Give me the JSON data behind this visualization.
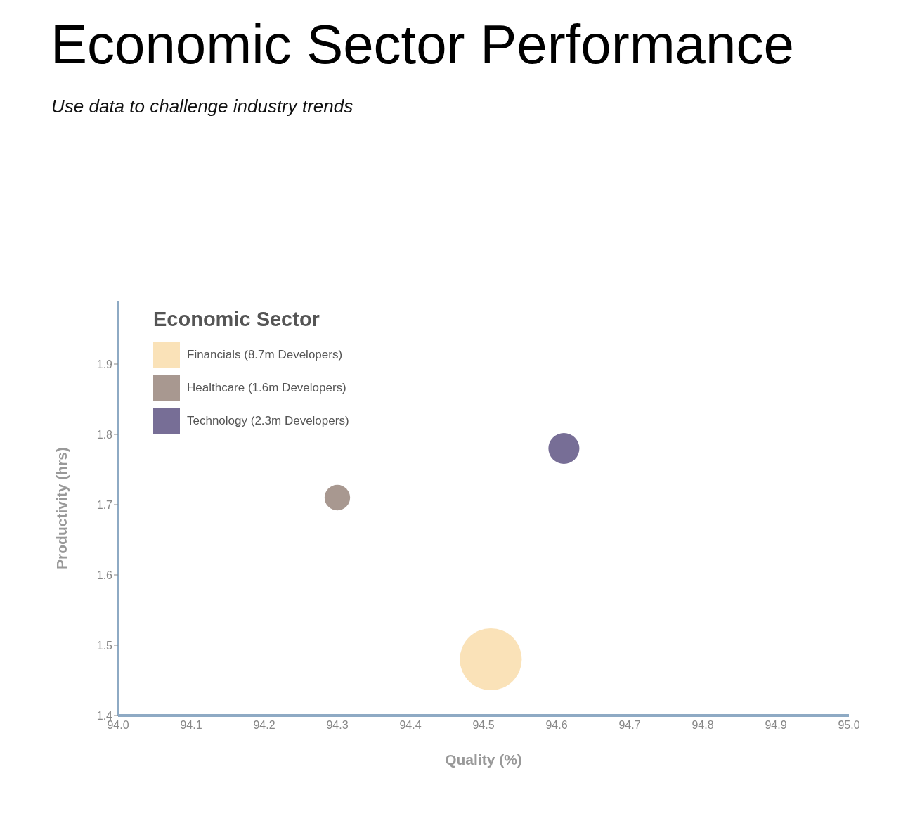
{
  "chart_data": {
    "type": "bubble",
    "title": "Economic Sector Performance",
    "subtitle": "Use data to challenge industry trends",
    "xlabel": "Quality (%)",
    "ylabel": "Productivity (hrs)",
    "legend_title": "Economic Sector",
    "legend": "top left",
    "grid": false,
    "marker": "circle",
    "xlim": [
      94.0,
      95.0
    ],
    "xticks": [
      {
        "value": 94.0,
        "label": "94.0"
      },
      {
        "value": 94.1,
        "label": "94.1"
      },
      {
        "value": 94.2,
        "label": "94.2"
      },
      {
        "value": 94.3,
        "label": "94.3"
      },
      {
        "value": 94.4,
        "label": "94.4"
      },
      {
        "value": 94.5,
        "label": "94.5"
      },
      {
        "value": 94.6,
        "label": "94.6"
      },
      {
        "value": 94.7,
        "label": "94.7"
      },
      {
        "value": 94.8,
        "label": "94.8"
      },
      {
        "value": 94.9,
        "label": "94.9"
      },
      {
        "value": 95.0,
        "label": "95.0"
      }
    ],
    "ylim": [
      1.4,
      1.99
    ],
    "yticks": [
      1.4,
      1.5,
      1.6,
      1.7,
      1.8,
      1.9
    ],
    "series": [
      {
        "name": "Financials (8.7m Developers)",
        "color": "#fae2b8",
        "x": [
          94.51
        ],
        "values": [
          1.48
        ],
        "sizes": [
          1
        ]
      },
      {
        "name": "Healthcare (1.6m Developers)",
        "color": "#a89890",
        "x": [
          94.3
        ],
        "values": [
          1.71
        ],
        "sizes": [
          0.17
        ]
      },
      {
        "name": "Technology (2.3m Developers)",
        "color": "#776e96",
        "x": [
          94.61
        ],
        "values": [
          1.78
        ],
        "sizes": [
          0.25
        ]
      }
    ]
  }
}
